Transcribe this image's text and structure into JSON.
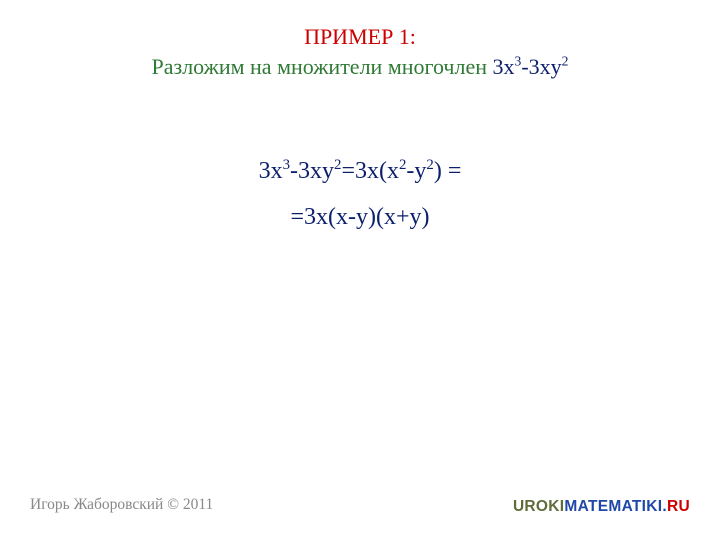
{
  "title": {
    "heading": "ПРИМЕР 1:",
    "sub_green": "Разложим на множители многочлен ",
    "expr_parts": {
      "a": "3x",
      "a_sup": "3",
      "b": "-3xy",
      "b_sup": "2"
    }
  },
  "math": {
    "line1": {
      "p1": "3x",
      "s1": "3",
      "p2": "-3xy",
      "s2": "2",
      "p3": "=3x(x",
      "s3": "2",
      "p4": "-y",
      "s4": "2",
      "p5": ")",
      "tail": " ="
    },
    "line2": "=3x(x-y)(x+y)"
  },
  "credit": "Игорь Жаборовский © 2011",
  "brand": {
    "p1": "UROKI",
    "p2": "MATEMATIKI",
    "p3": ".",
    "p4": "RU"
  },
  "colors": {
    "red": "#cc0000",
    "green": "#2f7a35",
    "navy": "#0b1f6b",
    "grey": "#888888",
    "brand_olive": "#5f6c3a",
    "brand_blue": "#1f48a8"
  }
}
